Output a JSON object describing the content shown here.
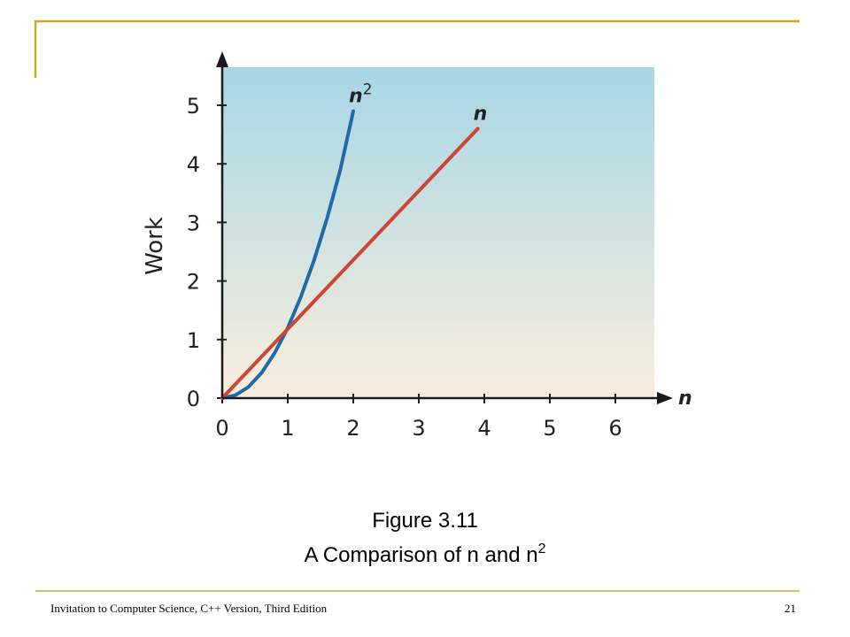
{
  "slide": {
    "accent_color": "#c8a82a",
    "caption": {
      "line1": "Figure 3.11",
      "line2_text": "A Comparison of n and n",
      "line2_sup": "2"
    },
    "footer": {
      "source": "Invitation to Computer Science, C++ Version, Third Edition",
      "page": "21"
    }
  },
  "chart_data": {
    "type": "line",
    "xlabel": "n",
    "ylabel": "Work",
    "xlim": [
      0,
      6.6
    ],
    "ylim": [
      0,
      5.6
    ],
    "x_ticks": [
      "0",
      "1",
      "2",
      "3",
      "4",
      "5",
      "6"
    ],
    "y_ticks": [
      "0",
      "1",
      "2",
      "3",
      "4",
      "5"
    ],
    "background_gradient": [
      "#a7d6e6",
      "#faeedd"
    ],
    "series": [
      {
        "label_base": "n",
        "label_sup": "2",
        "color": "#1f6aa8",
        "x": [
          0,
          0.2,
          0.4,
          0.6,
          0.8,
          1.0,
          1.2,
          1.4,
          1.6,
          1.8,
          2.0
        ],
        "y": [
          0,
          0.05,
          0.19,
          0.43,
          0.77,
          1.2,
          1.73,
          2.35,
          3.07,
          3.89,
          4.9
        ]
      },
      {
        "label_base": "n",
        "label_sup": "",
        "color": "#cc4535",
        "x": [
          0,
          3.9
        ],
        "y": [
          0,
          4.6
        ]
      }
    ]
  }
}
